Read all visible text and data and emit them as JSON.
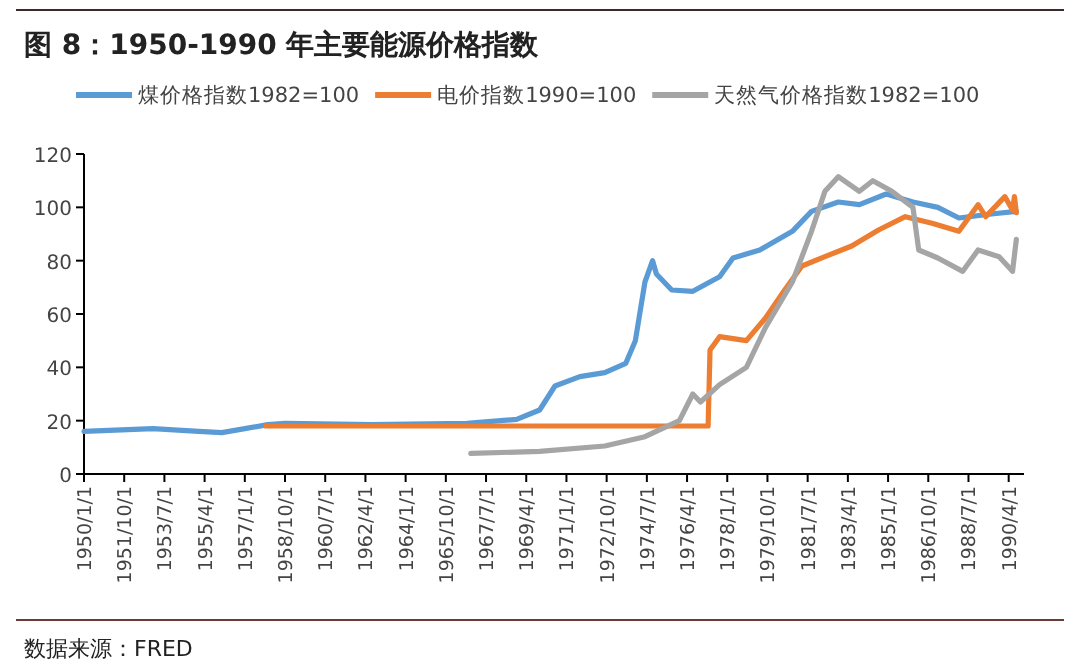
{
  "chart_data": {
    "type": "line",
    "title": "图 8：1950-1990 年主要能源价格指数",
    "annotations": [
      "数据来源：FRED"
    ],
    "legend": "top",
    "xlim": [
      "1950-01",
      "1990-12"
    ],
    "ylim": [
      0,
      120
    ],
    "yticks": [
      0,
      20,
      40,
      60,
      80,
      100,
      120
    ],
    "xticks": [
      {
        "value": "1950-01",
        "label": "1950/1/1"
      },
      {
        "value": "1951-10",
        "label": "1951/10/1"
      },
      {
        "value": "1953-07",
        "label": "1953/7/1"
      },
      {
        "value": "1955-04",
        "label": "1955/4/1"
      },
      {
        "value": "1957-01",
        "label": "1957/1/1"
      },
      {
        "value": "1958-10",
        "label": "1958/10/1"
      },
      {
        "value": "1960-07",
        "label": "1960/7/1"
      },
      {
        "value": "1962-04",
        "label": "1962/4/1"
      },
      {
        "value": "1964-01",
        "label": "1964/1/1"
      },
      {
        "value": "1965-10",
        "label": "1965/10/1"
      },
      {
        "value": "1967-07",
        "label": "1967/7/1"
      },
      {
        "value": "1969-04",
        "label": "1969/4/1"
      },
      {
        "value": "1971-01",
        "label": "1971/1/1"
      },
      {
        "value": "1972-10",
        "label": "1972/10/1"
      },
      {
        "value": "1974-07",
        "label": "1974/7/1"
      },
      {
        "value": "1976-04",
        "label": "1976/4/1"
      },
      {
        "value": "1978-01",
        "label": "1978/1/1"
      },
      {
        "value": "1979-10",
        "label": "1979/10/1"
      },
      {
        "value": "1981-07",
        "label": "1981/7/1"
      },
      {
        "value": "1983-04",
        "label": "1983/4/1"
      },
      {
        "value": "1985-01",
        "label": "1985/1/1"
      },
      {
        "value": "1986-10",
        "label": "1986/10/1"
      },
      {
        "value": "1988-07",
        "label": "1988/7/1"
      },
      {
        "value": "1990-04",
        "label": "1990/4/1"
      }
    ],
    "series": [
      {
        "name": "煤价格指数1982=100",
        "color": "#5b9bd5",
        "x": [
          "1950-01",
          "1953-01",
          "1955-01",
          "1956-01",
          "1957-01",
          "1958-01",
          "1958-10",
          "1962-07",
          "1966-09",
          "1968-11",
          "1969-11",
          "1970-07",
          "1971-08",
          "1972-09",
          "1973-08",
          "1974-01",
          "1974-06",
          "1974-10",
          "1974-12",
          "1975-08",
          "1976-07",
          "1977-09",
          "1978-04",
          "1979-06",
          "1980-11",
          "1981-09",
          "1982-11",
          "1983-10",
          "1984-12",
          "1986-02",
          "1987-03",
          "1988-02",
          "1989-07",
          "1990-08"
        ],
        "values": [
          16,
          17,
          16,
          15.5,
          17,
          18.5,
          19,
          18.5,
          19,
          20.5,
          24,
          33,
          36.5,
          38,
          41.5,
          50,
          72,
          80,
          75,
          69,
          68.5,
          74,
          81,
          84,
          91,
          98.5,
          102,
          101,
          105,
          102,
          100,
          96,
          97.5,
          98.5
        ]
      },
      {
        "name": "电价指数1990=100",
        "color": "#ed7d31",
        "x": [
          "1957-12",
          "1965-01",
          "1977-03",
          "1977-04",
          "1977-09",
          "1978-11",
          "1979-09",
          "1980-07",
          "1981-04",
          "1982-04",
          "1983-06",
          "1984-08",
          "1985-10",
          "1986-12",
          "1988-02",
          "1988-12",
          "1989-04",
          "1990-02",
          "1990-06",
          "1990-07",
          "1990-08"
        ],
        "values": [
          18,
          18,
          18,
          46.5,
          51.5,
          50,
          58.5,
          69,
          78,
          81.5,
          85.5,
          91.5,
          96.5,
          94,
          91,
          101,
          96.5,
          104,
          99,
          104,
          98
        ]
      },
      {
        "name": "天然气价格指数1982=100",
        "color": "#a5a5a5",
        "x": [
          "1966-11",
          "1969-11",
          "1972-09",
          "1974-06",
          "1975-12",
          "1976-07",
          "1976-11",
          "1977-09",
          "1978-11",
          "1979-09",
          "1980-11",
          "1981-09",
          "1982-04",
          "1982-11",
          "1983-10",
          "1984-05",
          "1985-03",
          "1986-02",
          "1986-05",
          "1987-03",
          "1988-04",
          "1988-12",
          "1989-11",
          "1990-06",
          "1990-08"
        ],
        "values": [
          7.7,
          8.5,
          10.5,
          14,
          20,
          30,
          27,
          33.5,
          40,
          55,
          72,
          91,
          106,
          111.5,
          106,
          110,
          106,
          100,
          84,
          81,
          76,
          84,
          81.5,
          76,
          88
        ]
      }
    ]
  }
}
